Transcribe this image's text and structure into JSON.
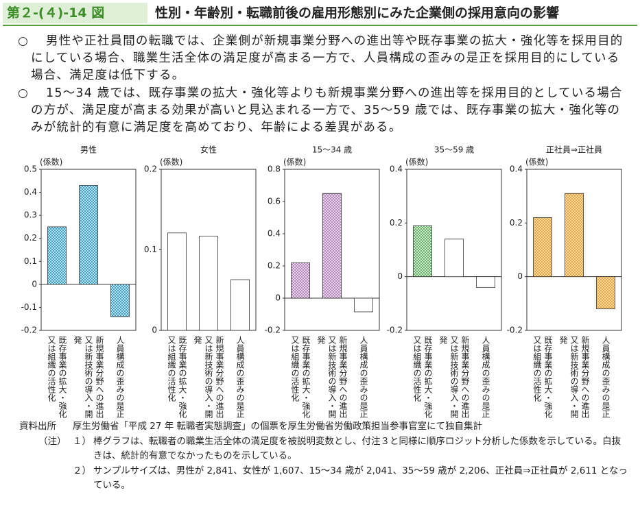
{
  "header": {
    "figure_number": "第２-(４)-14 図",
    "title": "性別・年齢別・転職前後の雇用形態別にみた企業側の採用意向の影響"
  },
  "bullet_mark": "○",
  "bullets": [
    "男性や正社員間の転職では、企業側が新規事業分野への進出等や既存事業の拡大・強化等を採用目的にしている場合、職業生活全体の満足度が高まる一方で、人員構成の歪みの是正を採用目的にしている場合、満足度は低下する。",
    "15～34 歳では、既存事業の拡大・強化等よりも新規事業分野への進出等を採用目的としている場合の方が、満足度が高まる効果が高いと見込まれる一方で、35～59 歳では、既存事業の拡大・強化等のみが統計的有意に満足度を高めており、年齢による差異がある。"
  ],
  "chart_data": [
    {
      "type": "bar",
      "title": "男性",
      "unit_label": "(係数)",
      "categories": [
        "既存事業の拡大・強化又は組織の活性化",
        "新規事業分野への進出又は新技術の導入・開発",
        "人員構成の歪みの是正"
      ],
      "values": [
        0.25,
        0.43,
        -0.14
      ],
      "colors": [
        "#2e9bc6",
        "#2e9bc6",
        "#2e9bc6"
      ],
      "ylim": [
        -0.2,
        0.5
      ],
      "yticks": [
        -0.2,
        -0.1,
        0,
        0.1,
        0.2,
        0.3,
        0.4,
        0.5
      ]
    },
    {
      "type": "bar",
      "title": "女性",
      "unit_label": "(係数)",
      "categories": [
        "既存事業の拡大・強化又は組織の活性化",
        "新規事業分野への進出又は新技術の導入・開発",
        "人員構成の歪みの是正"
      ],
      "values": [
        0.121,
        0.117,
        0.063
      ],
      "colors": [
        "#ffffff",
        "#ffffff",
        "#ffffff"
      ],
      "ylim": [
        0,
        0.2
      ],
      "yticks": [
        0,
        0.1,
        0.2
      ]
    },
    {
      "type": "bar",
      "title": "15～34 歳",
      "unit_label": "(係数)",
      "categories": [
        "既存事業の拡大・強化又は組織の活性化",
        "新規事業分野への進出又は新技術の導入・開発",
        "人員構成の歪みの是正"
      ],
      "values": [
        0.22,
        0.65,
        -0.085
      ],
      "colors": [
        "#b07fb8",
        "#b07fb8",
        "#ffffff"
      ],
      "ylim": [
        -0.2,
        0.8
      ],
      "yticks": [
        -0.2,
        0,
        0.2,
        0.4,
        0.6,
        0.8
      ]
    },
    {
      "type": "bar",
      "title": "35～59 歳",
      "unit_label": "(係数)",
      "categories": [
        "既存事業の拡大・強化又は組織の活性化",
        "新規事業分野への進出又は新技術の導入・開発",
        "人員構成の歪みの是正"
      ],
      "values": [
        0.19,
        0.14,
        -0.04
      ],
      "colors": [
        "#5fae5f",
        "#ffffff",
        "#ffffff"
      ],
      "ylim": [
        -0.2,
        0.4
      ],
      "yticks": [
        -0.2,
        0,
        0.2,
        0.4
      ]
    },
    {
      "type": "bar",
      "title": "正社員⇒正社員",
      "unit_label": "(係数)",
      "categories": [
        "既存事業の拡大・強化又は組織の活性化",
        "新規事業分野への進出又は新技術の導入・開発",
        "人員構成の歪みの是正"
      ],
      "values": [
        0.22,
        0.31,
        -0.12
      ],
      "colors": [
        "#f39a1e",
        "#f39a1e",
        "#f39a1e"
      ],
      "ylim": [
        -0.2,
        0.4
      ],
      "yticks": [
        -0.2,
        0,
        0.2,
        0.4
      ]
    }
  ],
  "source": {
    "label": "資料出所",
    "text": "厚生労働省「平成 27 年 転職者実態調査」の個票を厚生労働省労働政策担当参事官室にて独自集計"
  },
  "notes": {
    "label": "（注）",
    "items": [
      {
        "number": "１）",
        "text": "棒グラフは、転職者の職業生活全体の満足度を被説明変数とし、付注３と同様に順序ロジット分析した係数を示している。白抜きは、統計的有意でなかったものを示している。"
      },
      {
        "number": "２）",
        "text": "サンプルサイズは、男性が 2,841、女性が 1,607、15～34 歳が 2,041、35～59 歳が 2,206、正社員⇒正社員が 2,611 となっている。"
      }
    ]
  }
}
